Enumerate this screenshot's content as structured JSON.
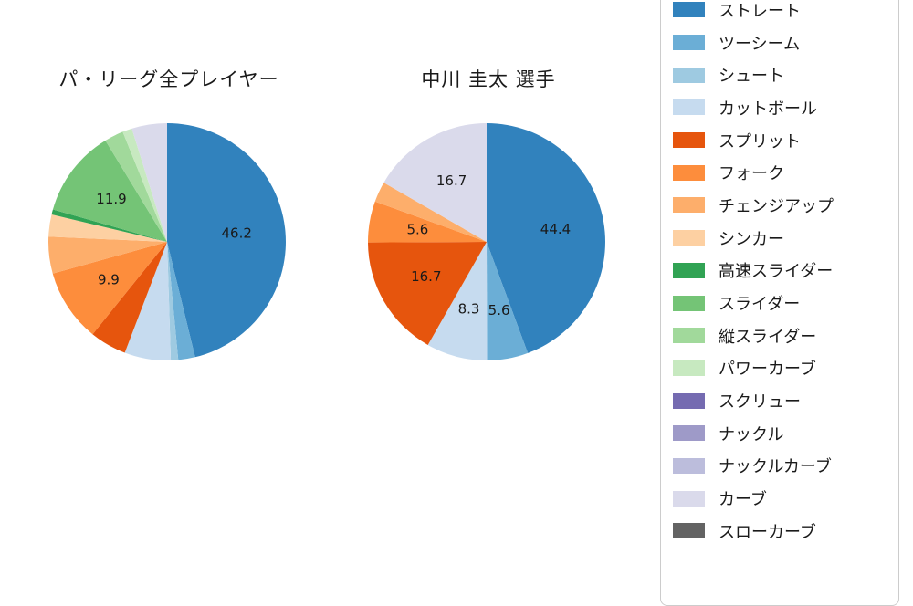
{
  "titles": {
    "left_chart": "パ・リーグ全プレイヤー",
    "right_chart": "中川 圭太  選手"
  },
  "legend": {
    "items": [
      {
        "label": "ストレート",
        "color": "#3182bd"
      },
      {
        "label": "ツーシーム",
        "color": "#6baed6"
      },
      {
        "label": "シュート",
        "color": "#9ecae1"
      },
      {
        "label": "カットボール",
        "color": "#c6dbef"
      },
      {
        "label": "スプリット",
        "color": "#e6550d"
      },
      {
        "label": "フォーク",
        "color": "#fd8d3c"
      },
      {
        "label": "チェンジアップ",
        "color": "#fdae6b"
      },
      {
        "label": "シンカー",
        "color": "#fdd0a2"
      },
      {
        "label": "高速スライダー",
        "color": "#31a354"
      },
      {
        "label": "スライダー",
        "color": "#74c476"
      },
      {
        "label": "縦スライダー",
        "color": "#a1d99b"
      },
      {
        "label": "パワーカーブ",
        "color": "#c7e9c0"
      },
      {
        "label": "スクリュー",
        "color": "#756bb1"
      },
      {
        "label": "ナックル",
        "color": "#9e9ac8"
      },
      {
        "label": "ナックルカーブ",
        "color": "#bcbddc"
      },
      {
        "label": "カーブ",
        "color": "#dadaeb"
      },
      {
        "label": "スローカーブ",
        "color": "#636363"
      }
    ]
  },
  "chart_data": [
    {
      "type": "pie",
      "title": "パ・リーグ全プレイヤー",
      "unit": "%",
      "start_angle_deg": 90,
      "direction": "clockwise",
      "label_radius_fraction": 0.59,
      "slices": [
        {
          "label": "ストレート",
          "value": 46.2,
          "pct_label": "46.2",
          "color": "#3182bd"
        },
        {
          "label": "ツーシーム",
          "value": 2.3,
          "pct_label": null,
          "color": "#6baed6"
        },
        {
          "label": "シュート",
          "value": 1.0,
          "pct_label": null,
          "color": "#9ecae1"
        },
        {
          "label": "カットボール",
          "value": 6.3,
          "pct_label": null,
          "color": "#c6dbef"
        },
        {
          "label": "スプリット",
          "value": 5.0,
          "pct_label": null,
          "color": "#e6550d"
        },
        {
          "label": "フォーク",
          "value": 9.9,
          "pct_label": "9.9",
          "color": "#fd8d3c"
        },
        {
          "label": "チェンジアップ",
          "value": 5.0,
          "pct_label": null,
          "color": "#fdae6b"
        },
        {
          "label": "シンカー",
          "value": 3.0,
          "pct_label": null,
          "color": "#fdd0a2"
        },
        {
          "label": "高速スライダー",
          "value": 0.7,
          "pct_label": null,
          "color": "#31a354"
        },
        {
          "label": "スライダー",
          "value": 11.9,
          "pct_label": "11.9",
          "color": "#74c476"
        },
        {
          "label": "縦スライダー",
          "value": 2.6,
          "pct_label": null,
          "color": "#a1d99b"
        },
        {
          "label": "パワーカーブ",
          "value": 1.3,
          "pct_label": null,
          "color": "#c7e9c0"
        },
        {
          "label": "スクリュー",
          "value": 0,
          "pct_label": null,
          "color": "#756bb1"
        },
        {
          "label": "ナックル",
          "value": 0,
          "pct_label": null,
          "color": "#9e9ac8"
        },
        {
          "label": "ナックルカーブ",
          "value": 0,
          "pct_label": null,
          "color": "#bcbddc"
        },
        {
          "label": "カーブ",
          "value": 4.8,
          "pct_label": null,
          "color": "#dadaeb"
        },
        {
          "label": "スローカーブ",
          "value": 0,
          "pct_label": null,
          "color": "#636363"
        }
      ]
    },
    {
      "type": "pie",
      "title": "中川 圭太  選手",
      "unit": "%",
      "start_angle_deg": 90,
      "direction": "clockwise",
      "label_radius_fraction": 0.59,
      "slices": [
        {
          "label": "ストレート",
          "value": 44.4,
          "pct_label": "44.4",
          "color": "#3182bd"
        },
        {
          "label": "ツーシーム",
          "value": 5.6,
          "pct_label": "5.6",
          "color": "#6baed6"
        },
        {
          "label": "シュート",
          "value": 0,
          "pct_label": null,
          "color": "#9ecae1"
        },
        {
          "label": "カットボール",
          "value": 8.3,
          "pct_label": "8.3",
          "color": "#c6dbef"
        },
        {
          "label": "スプリット",
          "value": 16.7,
          "pct_label": "16.7",
          "color": "#e6550d"
        },
        {
          "label": "フォーク",
          "value": 5.6,
          "pct_label": "5.6",
          "color": "#fd8d3c"
        },
        {
          "label": "チェンジアップ",
          "value": 2.8,
          "pct_label": null,
          "color": "#fdae6b"
        },
        {
          "label": "シンカー",
          "value": 0,
          "pct_label": null,
          "color": "#fdd0a2"
        },
        {
          "label": "高速スライダー",
          "value": 0,
          "pct_label": null,
          "color": "#31a354"
        },
        {
          "label": "スライダー",
          "value": 0,
          "pct_label": null,
          "color": "#74c476"
        },
        {
          "label": "縦スライダー",
          "value": 0,
          "pct_label": null,
          "color": "#a1d99b"
        },
        {
          "label": "パワーカーブ",
          "value": 0,
          "pct_label": null,
          "color": "#c7e9c0"
        },
        {
          "label": "スクリュー",
          "value": 0,
          "pct_label": null,
          "color": "#756bb1"
        },
        {
          "label": "ナックル",
          "value": 0,
          "pct_label": null,
          "color": "#9e9ac8"
        },
        {
          "label": "ナックルカーブ",
          "value": 0,
          "pct_label": null,
          "color": "#bcbddc"
        },
        {
          "label": "カーブ",
          "value": 16.7,
          "pct_label": "16.7",
          "color": "#dadaeb"
        },
        {
          "label": "スローカーブ",
          "value": 0,
          "pct_label": null,
          "color": "#636363"
        }
      ]
    }
  ]
}
